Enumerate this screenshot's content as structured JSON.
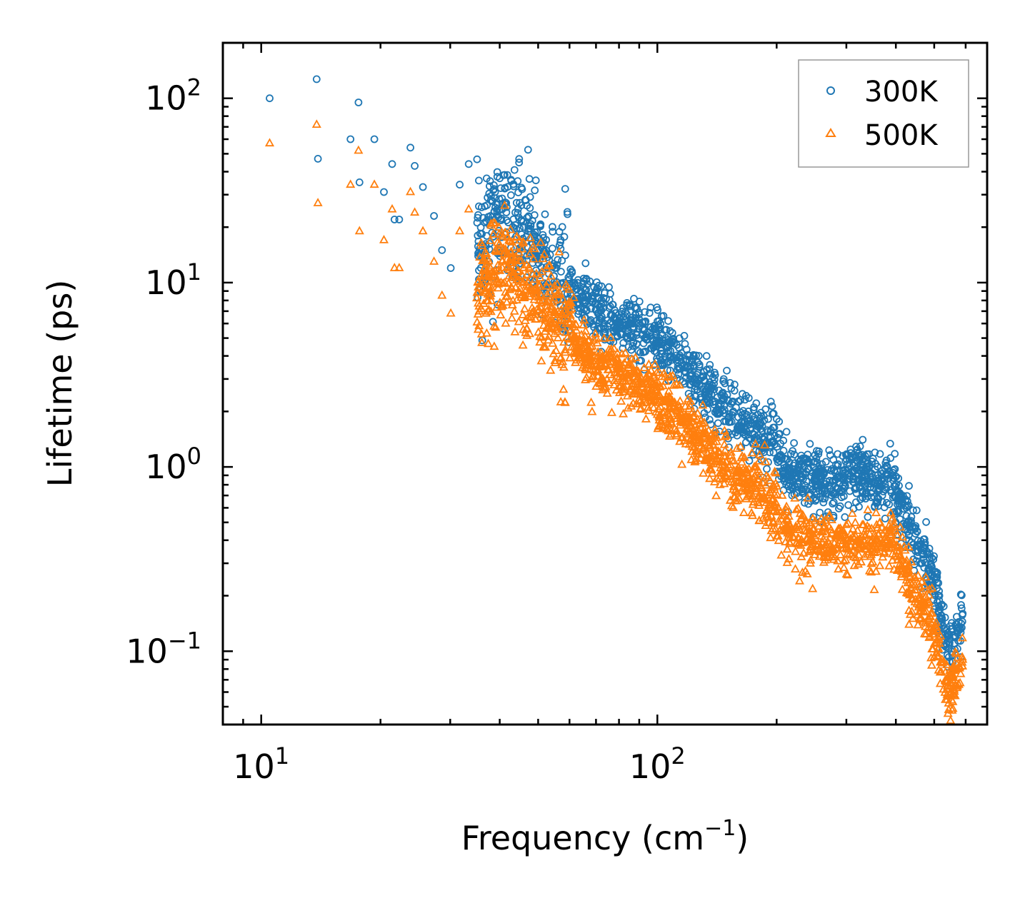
{
  "chart_data": {
    "type": "scatter",
    "title": "",
    "xlabel": "Frequency (cm",
    "xlabel_sup": "−1",
    "xlabel_end": ")",
    "ylabel": "Lifetime (ps)",
    "xscale": "log",
    "yscale": "log",
    "xlim": [
      8,
      680
    ],
    "ylim": [
      0.04,
      200
    ],
    "x_ticks": [
      {
        "value": 10,
        "base": "10",
        "exp": "1"
      },
      {
        "value": 100,
        "base": "10",
        "exp": "2"
      }
    ],
    "y_ticks": [
      {
        "value": 0.1,
        "base": "10",
        "exp": "−1"
      },
      {
        "value": 1,
        "base": "10",
        "exp": "0"
      },
      {
        "value": 10,
        "base": "10",
        "exp": "1"
      },
      {
        "value": 100,
        "base": "10",
        "exp": "2"
      }
    ],
    "legend_position": "top-right",
    "series": [
      {
        "name": "300K",
        "marker": "circle",
        "color": "#1f77b4",
        "sample_points": [
          [
            10.5,
            100
          ],
          [
            13.8,
            127
          ],
          [
            13.9,
            47
          ],
          [
            16.8,
            60
          ],
          [
            17.6,
            95
          ],
          [
            17.7,
            35
          ],
          [
            19.3,
            60
          ],
          [
            20.4,
            31
          ],
          [
            21.4,
            44
          ],
          [
            21.7,
            22
          ],
          [
            22.3,
            22
          ],
          [
            23.8,
            54
          ],
          [
            24.4,
            43
          ],
          [
            25.6,
            33
          ],
          [
            27.3,
            23
          ],
          [
            28.6,
            15
          ],
          [
            30.1,
            12
          ],
          [
            31.7,
            34
          ],
          [
            33.4,
            44
          ],
          [
            35.2,
            18
          ],
          [
            37.9,
            23
          ],
          [
            40.6,
            25
          ],
          [
            43.8,
            24
          ],
          [
            47.2,
            19
          ],
          [
            50.9,
            16
          ],
          [
            55.1,
            12
          ],
          [
            60.2,
            11
          ],
          [
            66.7,
            8.5
          ],
          [
            73.1,
            7.3
          ],
          [
            80.5,
            6.4
          ],
          [
            88.4,
            6.2
          ],
          [
            97.2,
            5.6
          ],
          [
            107,
            4.6
          ],
          [
            118,
            3.8
          ],
          [
            130,
            3.1
          ],
          [
            143,
            2.6
          ],
          [
            158,
            2.1
          ],
          [
            175,
            1.8
          ],
          [
            193,
            1.55
          ],
          [
            213,
            1.1
          ],
          [
            235,
            1.0
          ],
          [
            260,
            0.95
          ],
          [
            288,
            0.88
          ],
          [
            320,
            1.08
          ],
          [
            355,
            0.9
          ],
          [
            393,
            0.9
          ],
          [
            425,
            0.6
          ],
          [
            460,
            0.38
          ],
          [
            490,
            0.3
          ],
          [
            515,
            0.2
          ],
          [
            540,
            0.12
          ],
          [
            570,
            0.14
          ],
          [
            590,
            0.16
          ]
        ]
      },
      {
        "name": "500K",
        "marker": "triangle",
        "color": "#ff7f0e",
        "sample_points": [
          [
            10.5,
            57
          ],
          [
            13.8,
            72
          ],
          [
            13.9,
            27
          ],
          [
            16.8,
            34
          ],
          [
            17.6,
            52
          ],
          [
            17.7,
            19
          ],
          [
            19.3,
            34
          ],
          [
            20.4,
            17
          ],
          [
            21.4,
            25
          ],
          [
            21.7,
            12
          ],
          [
            22.3,
            12
          ],
          [
            23.8,
            31
          ],
          [
            24.4,
            24
          ],
          [
            25.6,
            19
          ],
          [
            27.3,
            13
          ],
          [
            28.6,
            8.5
          ],
          [
            30.1,
            6.8
          ],
          [
            31.7,
            19
          ],
          [
            33.4,
            25
          ],
          [
            35.2,
            10
          ],
          [
            37.9,
            12
          ],
          [
            40.6,
            13
          ],
          [
            43.8,
            12
          ],
          [
            47.2,
            10
          ],
          [
            50.9,
            8.5
          ],
          [
            55.1,
            7.0
          ],
          [
            60.2,
            6.0
          ],
          [
            66.7,
            4.3
          ],
          [
            73.1,
            3.8
          ],
          [
            80.5,
            3.4
          ],
          [
            88.4,
            3.2
          ],
          [
            97.2,
            2.8
          ],
          [
            107,
            2.4
          ],
          [
            118,
            1.9
          ],
          [
            130,
            1.5
          ],
          [
            143,
            1.2
          ],
          [
            158,
            0.95
          ],
          [
            175,
            0.85
          ],
          [
            193,
            0.72
          ],
          [
            213,
            0.52
          ],
          [
            235,
            0.45
          ],
          [
            260,
            0.45
          ],
          [
            288,
            0.42
          ],
          [
            320,
            0.45
          ],
          [
            355,
            0.42
          ],
          [
            393,
            0.45
          ],
          [
            425,
            0.3
          ],
          [
            460,
            0.2
          ],
          [
            490,
            0.16
          ],
          [
            515,
            0.11
          ],
          [
            540,
            0.065
          ],
          [
            570,
            0.08
          ],
          [
            590,
            0.09
          ]
        ]
      }
    ]
  }
}
